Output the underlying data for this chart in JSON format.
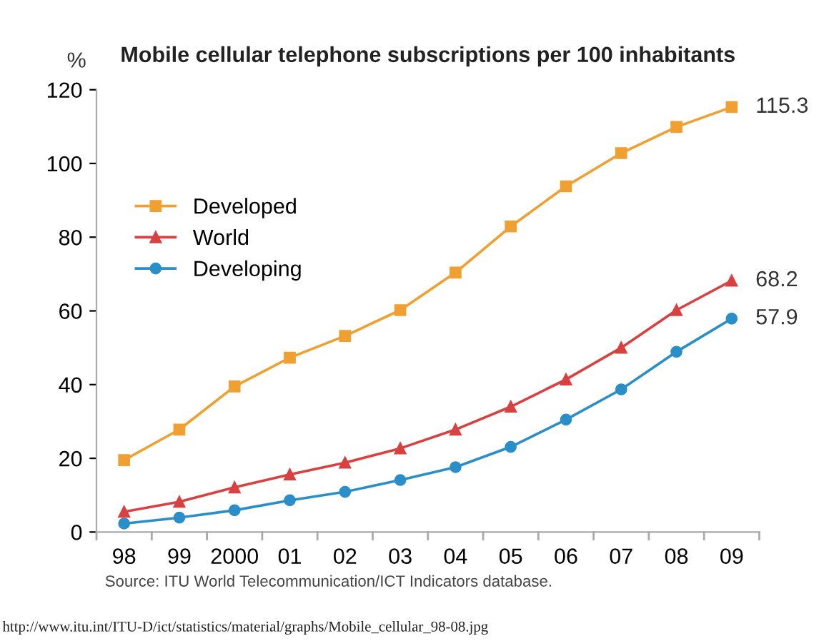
{
  "chart_data": {
    "type": "line",
    "title": "Mobile cellular telephone subscriptions per 100 inhabitants",
    "ylabel": "%",
    "categories": [
      "98",
      "99",
      "2000",
      "01",
      "02",
      "03",
      "04",
      "05",
      "06",
      "07",
      "08",
      "09"
    ],
    "series": [
      {
        "name": "Developed",
        "color": "#f0a030",
        "marker": "square",
        "values": [
          19.5,
          27.8,
          39.5,
          47.3,
          53.2,
          60.2,
          70.4,
          82.9,
          93.8,
          102.8,
          109.9,
          115.3
        ],
        "value_labels": [
          null,
          null,
          null,
          null,
          null,
          null,
          null,
          null,
          null,
          null,
          null,
          "115.3"
        ]
      },
      {
        "name": "World",
        "color": "#d94040",
        "marker": "triangle",
        "values": [
          5.5,
          8.2,
          12.1,
          15.6,
          18.8,
          22.7,
          27.8,
          34.0,
          41.4,
          50.0,
          60.2,
          68.2
        ],
        "value_labels": [
          null,
          null,
          null,
          null,
          null,
          null,
          null,
          null,
          null,
          null,
          null,
          "68.2"
        ]
      },
      {
        "name": "Developing",
        "color": "#2a8fc8",
        "marker": "circle",
        "values": [
          2.3,
          3.9,
          5.9,
          8.6,
          10.9,
          14.1,
          17.6,
          23.1,
          30.5,
          38.7,
          48.9,
          57.9
        ],
        "value_labels": [
          null,
          null,
          null,
          null,
          null,
          null,
          null,
          null,
          null,
          null,
          null,
          "57.9"
        ]
      }
    ],
    "ylim": [
      0,
      120
    ],
    "yticks": [
      0,
      20,
      40,
      60,
      80,
      100,
      120
    ],
    "grid": false,
    "legend": "top left",
    "line_style": "solid",
    "annotations": [
      "Source: ITU World Telecommunication/ICT Indicators database.",
      "http://www.itu.int/ITU-D/ict/statistics/material/graphs/Mobile_cellular_98-08.jpg"
    ]
  }
}
